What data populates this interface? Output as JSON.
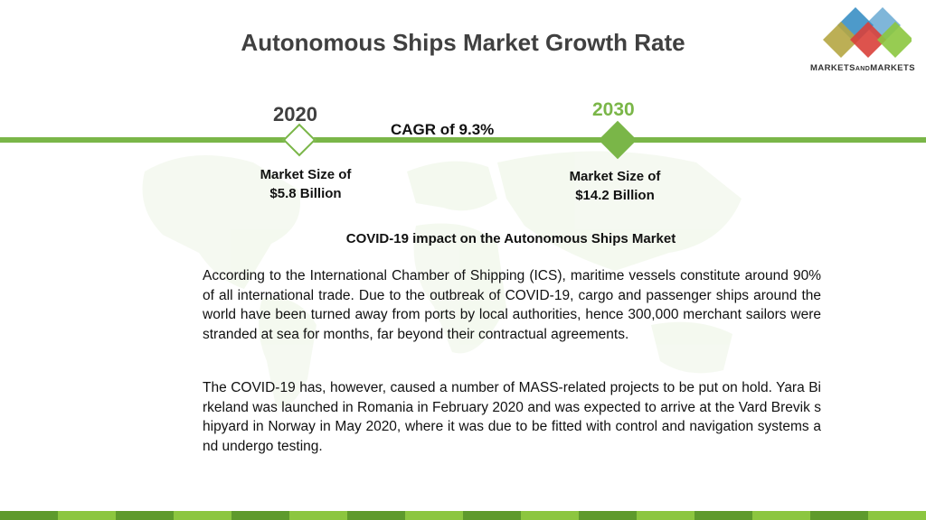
{
  "title": "Autonomous Ships Market Growth Rate",
  "logo": {
    "text_main": "MARKETS",
    "text_and": "AND",
    "text_end": "MARKETS"
  },
  "timeline": {
    "start_year": "2020",
    "end_year": "2030",
    "cagr": "CAGR of 9.3%",
    "start_size_line1": "Market Size of",
    "start_size_line2": "$5.8 Billion",
    "end_size_line1": "Market Size of",
    "end_size_line2": "$14.2 Billion"
  },
  "covid": {
    "heading": "COVID-19 impact on the Autonomous Ships Market",
    "paragraph1": "According to the International Chamber of Shipping (ICS), maritime vessels constitute around 90% of all international trade. Due to the outbreak of COVID-19, cargo and passenger ships around the world have been turned away from ports by local authorities, hence 300,000 merchant sailors were stranded at sea for months, far beyond their contractual agreements.",
    "paragraph2": "The COVID-19 has, however, caused a number of MASS-related projects to be put on hold. Yara Birkeland was launched in Romania in February 2020 and was expected to arrive at the Vard Brevik shipyard in Norway in May 2020, where it was due to be fitted with control and navigation systems and undergo testing."
  },
  "colors": {
    "accent_green": "#7ab648",
    "title_gray": "#404040",
    "logo_blue": "#3a8fc4",
    "logo_red": "#d9403a",
    "logo_green": "#8cc63f",
    "logo_olive": "#b5a642"
  }
}
